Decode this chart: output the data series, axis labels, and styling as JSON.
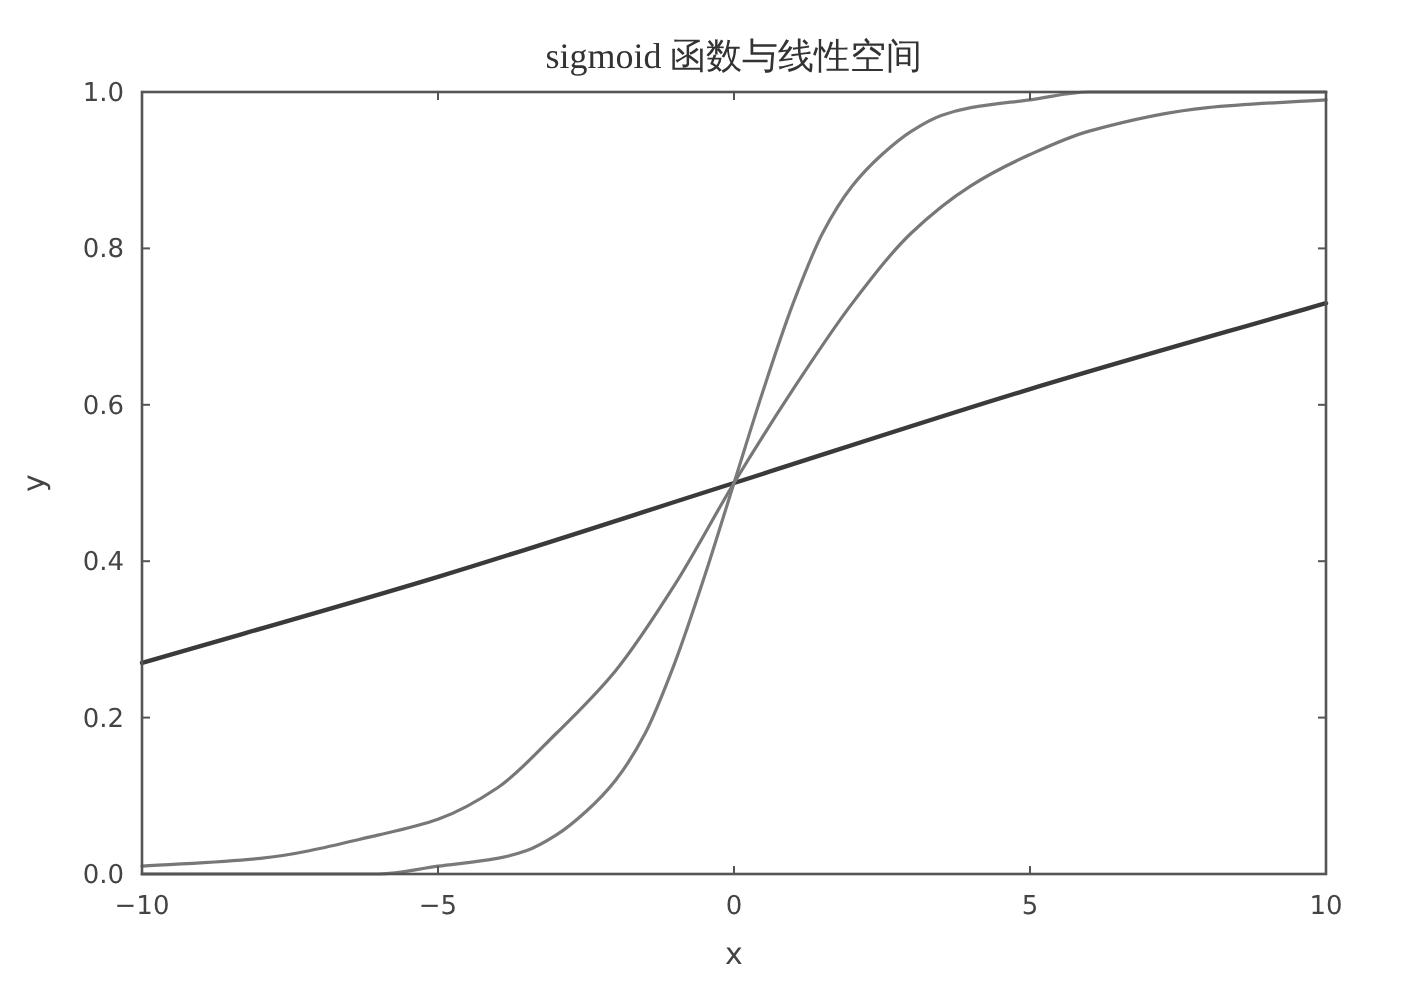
{
  "chart_data": {
    "type": "line",
    "title": "sigmoid 函数与线性空间",
    "xlabel": "x",
    "ylabel": "y",
    "xlim": [
      -10,
      10
    ],
    "ylim": [
      0,
      1
    ],
    "xticks": [
      {
        "value": -10,
        "label": "−10"
      },
      {
        "value": -5,
        "label": "−5"
      },
      0,
      5,
      10
    ],
    "yticks": [
      {
        "value": 0,
        "label": "0.0"
      },
      {
        "value": 0.2,
        "label": "0.2"
      },
      {
        "value": 0.4,
        "label": "0.4"
      },
      {
        "value": 0.6,
        "label": "0.6"
      },
      {
        "value": 0.8,
        "label": "0.8"
      },
      {
        "value": 1,
        "label": "1.0"
      }
    ],
    "series": [
      {
        "color": "#3a3a3a",
        "x": [
          -10,
          -5,
          0,
          5,
          10
        ],
        "values": [
          0.27,
          0.38,
          0.5,
          0.62,
          0.73
        ]
      },
      {
        "color": "#777777",
        "x": [
          -10,
          -8,
          -6,
          -5,
          -4,
          -3,
          -2,
          -1,
          0,
          1,
          2,
          3,
          4,
          5,
          6,
          8,
          10
        ],
        "values": [
          0.01,
          0.02,
          0.05,
          0.07,
          0.11,
          0.18,
          0.26,
          0.37,
          0.5,
          0.62,
          0.73,
          0.82,
          0.88,
          0.92,
          0.95,
          0.98,
          0.99
        ]
      },
      {
        "color": "#7a7a7a",
        "x": [
          -10,
          -6,
          -5,
          -4,
          -3.5,
          -3,
          -2.5,
          -2,
          -1.5,
          -1,
          -0.5,
          0,
          0.5,
          1,
          1.5,
          2,
          2.5,
          3,
          3.5,
          4,
          5,
          6,
          10
        ],
        "values": [
          0,
          0,
          0.01,
          0.02,
          0.03,
          0.05,
          0.08,
          0.12,
          0.18,
          0.27,
          0.38,
          0.5,
          0.62,
          0.73,
          0.82,
          0.88,
          0.92,
          0.95,
          0.97,
          0.98,
          0.99,
          1,
          1
        ]
      }
    ]
  }
}
